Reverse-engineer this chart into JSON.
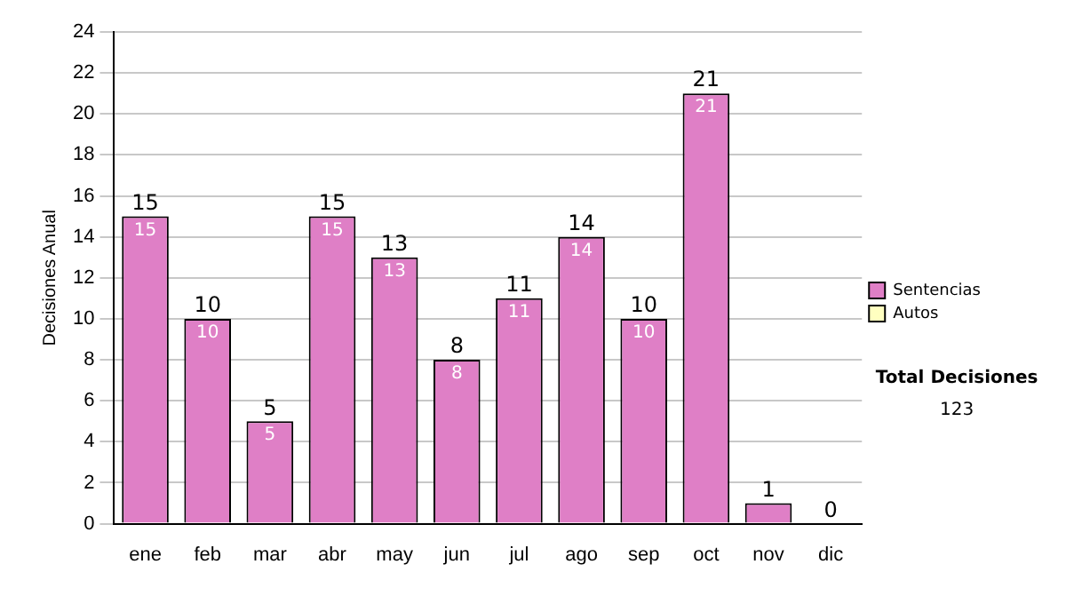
{
  "chart_data": {
    "type": "bar",
    "ylabel": "Decisiones Anual",
    "categories": [
      "ene",
      "feb",
      "mar",
      "abr",
      "may",
      "jun",
      "jul",
      "ago",
      "sep",
      "oct",
      "nov",
      "dic"
    ],
    "series": [
      {
        "name": "Sentencias",
        "color": "#df7fc6",
        "values": [
          15,
          10,
          5,
          15,
          13,
          8,
          11,
          14,
          10,
          21,
          1,
          0
        ],
        "value_labels": [
          "15",
          "10",
          "5",
          "15",
          "13",
          "8",
          "11",
          "14",
          "10",
          "21",
          null,
          null
        ]
      },
      {
        "name": "Autos",
        "color": "#ffffc0",
        "values": [
          0,
          0,
          0,
          0,
          0,
          0,
          0,
          0,
          0,
          0,
          0,
          0
        ]
      }
    ],
    "stacked": true,
    "totals": [
      "15",
      "10",
      "5",
      "15",
      "13",
      "8",
      "11",
      "14",
      "10",
      "21",
      "1",
      "0"
    ],
    "ylim": [
      0,
      24
    ],
    "yticks": [
      0,
      2,
      4,
      6,
      8,
      10,
      12,
      14,
      16,
      18,
      20,
      22,
      24
    ],
    "grid": "y",
    "legend": "right",
    "annotations": [
      "Total Decisiones",
      "123"
    ]
  }
}
